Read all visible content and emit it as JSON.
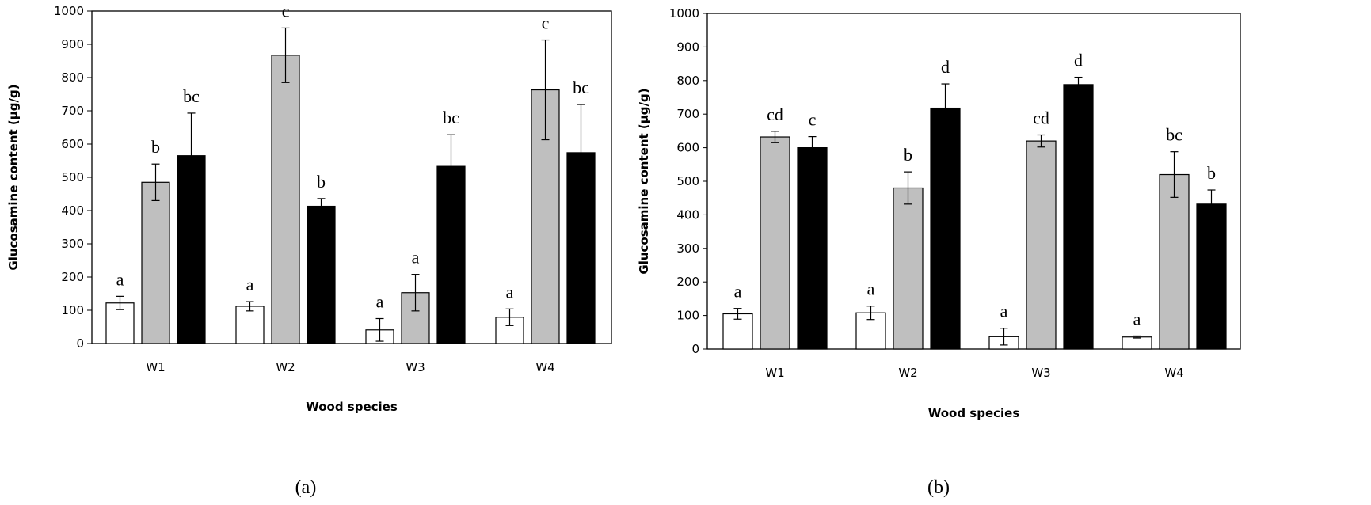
{
  "chart_data": [
    {
      "type": "bar",
      "panel_label": "(a)",
      "xlabel": "Wood species",
      "ylabel": "Glucosamine content (µg/g)",
      "ylim": [
        0,
        1000
      ],
      "yticks": [
        0,
        100,
        200,
        300,
        400,
        500,
        600,
        700,
        800,
        900,
        1000
      ],
      "categories": [
        "W1",
        "W2",
        "W3",
        "W4"
      ],
      "grid": false,
      "legend": "none",
      "series": [
        {
          "color": "#ffffff",
          "values": [
            122,
            112,
            41,
            79
          ],
          "errors": [
            20,
            14,
            34,
            25
          ],
          "letters": [
            "a",
            "a",
            "a",
            "a"
          ]
        },
        {
          "color": "#bfbfbf",
          "values": [
            485,
            867,
            153,
            763
          ],
          "errors": [
            55,
            82,
            55,
            150
          ],
          "letters": [
            "b",
            "c",
            "a",
            "c"
          ]
        },
        {
          "color": "#000000",
          "values": [
            565,
            413,
            533,
            574
          ],
          "errors": [
            128,
            23,
            95,
            145
          ],
          "letters": [
            "bc",
            "b",
            "bc",
            "bc"
          ]
        }
      ]
    },
    {
      "type": "bar",
      "panel_label": "(b)",
      "xlabel": "Wood species",
      "ylabel": "Glucosamine content (µg/g)",
      "ylim": [
        0,
        1000
      ],
      "yticks": [
        0,
        100,
        200,
        300,
        400,
        500,
        600,
        700,
        800,
        900,
        1000
      ],
      "categories": [
        "W1",
        "W2",
        "W3",
        "W4"
      ],
      "grid": false,
      "legend": "none",
      "series": [
        {
          "color": "#ffffff",
          "values": [
            105,
            108,
            37,
            36
          ],
          "errors": [
            16,
            20,
            25,
            3
          ],
          "letters": [
            "a",
            "a",
            "a",
            "a"
          ]
        },
        {
          "color": "#bfbfbf",
          "values": [
            632,
            480,
            620,
            520
          ],
          "errors": [
            17,
            48,
            18,
            68
          ],
          "letters": [
            "cd",
            "b",
            "cd",
            "bc"
          ]
        },
        {
          "color": "#000000",
          "values": [
            600,
            718,
            788,
            432
          ],
          "errors": [
            33,
            72,
            22,
            42
          ],
          "letters": [
            "c",
            "d",
            "d",
            "b"
          ]
        }
      ]
    }
  ]
}
